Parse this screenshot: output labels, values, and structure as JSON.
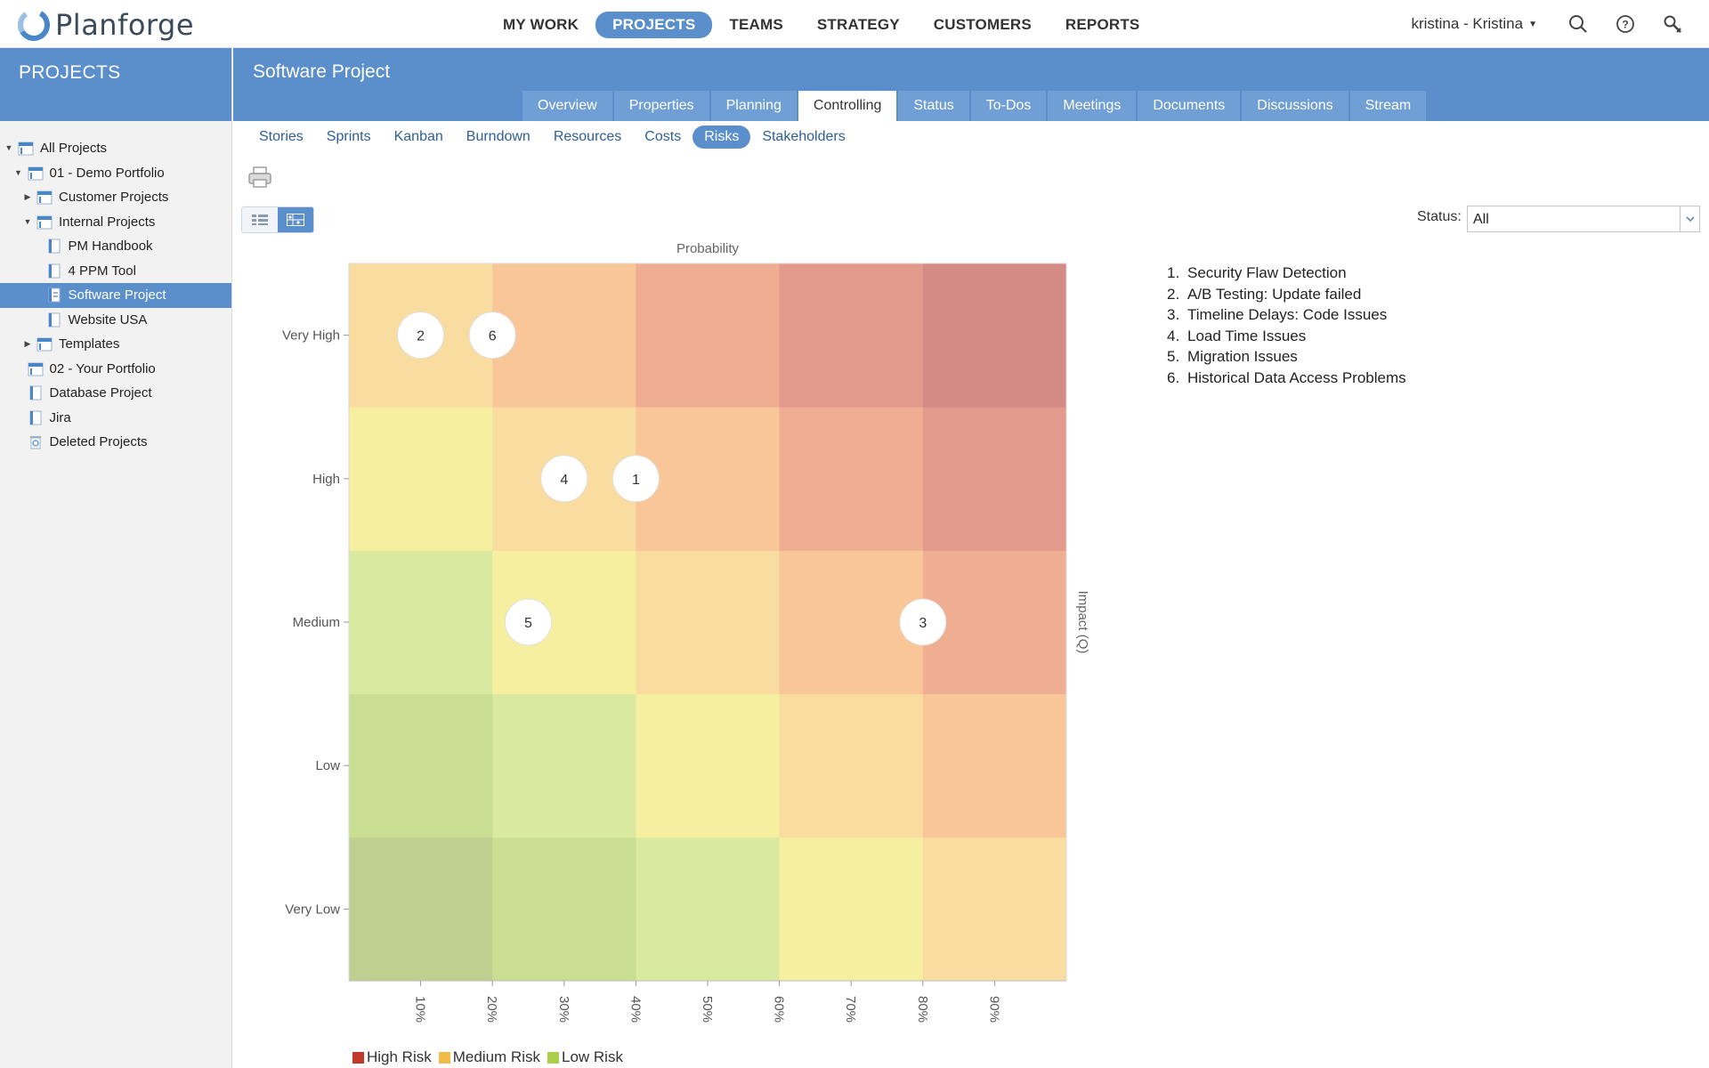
{
  "app": {
    "brand": "Planforge",
    "main_nav": [
      "MY WORK",
      "PROJECTS",
      "TEAMS",
      "STRATEGY",
      "CUSTOMERS",
      "REPORTS"
    ],
    "main_nav_active": "PROJECTS",
    "user": "kristina - Kristina"
  },
  "sidebar": {
    "title": "PROJECTS",
    "tree": [
      {
        "label": "All Projects",
        "level": 0,
        "expander": "open",
        "icon": "portfolio-icon"
      },
      {
        "label": "01 - Demo Portfolio",
        "level": 1,
        "expander": "open",
        "icon": "portfolio-icon"
      },
      {
        "label": "Customer Projects",
        "level": 2,
        "expander": "closed",
        "icon": "portfolio-icon"
      },
      {
        "label": "Internal Projects",
        "level": 2,
        "expander": "open",
        "icon": "portfolio-icon"
      },
      {
        "label": "PM Handbook",
        "level": 3,
        "expander": "none",
        "icon": "project-icon"
      },
      {
        "label": "4 PPM Tool",
        "level": 3,
        "expander": "none",
        "icon": "project-icon"
      },
      {
        "label": "Software Project",
        "level": 3,
        "expander": "none",
        "icon": "agile-project-icon",
        "selected": true
      },
      {
        "label": "Website USA",
        "level": 3,
        "expander": "none",
        "icon": "project-icon"
      },
      {
        "label": "Templates",
        "level": 2,
        "expander": "closed",
        "icon": "portfolio-icon"
      },
      {
        "label": "02 - Your Portfolio",
        "level": 1,
        "expander": "none",
        "icon": "portfolio-icon"
      },
      {
        "label": "Database Project",
        "level": 1,
        "expander": "none",
        "icon": "project-icon"
      },
      {
        "label": "Jira",
        "level": 1,
        "expander": "none",
        "icon": "project-icon"
      },
      {
        "label": "Deleted Projects",
        "level": 1,
        "expander": "none",
        "icon": "trash-icon"
      }
    ]
  },
  "project": {
    "title": "Software Project",
    "tabs": [
      "Overview",
      "Properties",
      "Planning",
      "Controlling",
      "Status",
      "To-Dos",
      "Meetings",
      "Documents",
      "Discussions",
      "Stream"
    ],
    "active_tab": "Controlling",
    "subnav": [
      "Stories",
      "Sprints",
      "Kanban",
      "Burndown",
      "Resources",
      "Costs",
      "Risks",
      "Stakeholders"
    ],
    "active_subnav": "Risks"
  },
  "filter": {
    "status_label": "Status:",
    "status_value": "All"
  },
  "risks": [
    {
      "number": "1.",
      "name": "Security Flaw Detection"
    },
    {
      "number": "2.",
      "name": "A/B Testing: Update failed"
    },
    {
      "number": "3.",
      "name": "Timeline Delays: Code Issues"
    },
    {
      "number": "4.",
      "name": "Load Time Issues"
    },
    {
      "number": "5.",
      "name": "Migration Issues"
    },
    {
      "number": "6.",
      "name": "Historical Data Access Problems"
    }
  ],
  "chart_data": {
    "type": "heatmap",
    "title": "Probability",
    "xlabel": "Probability",
    "ylabel": "Impact (Q)",
    "x_ticks": [
      "10%",
      "20%",
      "30%",
      "40%",
      "50%",
      "60%",
      "70%",
      "80%",
      "90%"
    ],
    "xlim": [
      0,
      100
    ],
    "y_categories": [
      "Very Low",
      "Low",
      "Medium",
      "High",
      "Very High"
    ],
    "cell_colors": [
      [
        "#bfcf8f",
        "#c9dd93",
        "#dae9a0",
        "#f5ef9f",
        "#f9dda0"
      ],
      [
        "#c9dd93",
        "#dae9a0",
        "#f5ef9f",
        "#f9dda0",
        "#f8c697"
      ],
      [
        "#dae9a0",
        "#f5ef9f",
        "#f9dda0",
        "#f8c697",
        "#efae91"
      ],
      [
        "#f5ef9f",
        "#f9dda0",
        "#f8c697",
        "#efae91",
        "#e39a8d"
      ],
      [
        "#f9dda0",
        "#f8c697",
        "#efae91",
        "#e39a8d",
        "#d48b85"
      ]
    ],
    "points": [
      {
        "label": "1",
        "probability": 40,
        "impact": "High"
      },
      {
        "label": "2",
        "probability": 10,
        "impact": "Very High"
      },
      {
        "label": "3",
        "probability": 80,
        "impact": "Medium"
      },
      {
        "label": "4",
        "probability": 30,
        "impact": "High"
      },
      {
        "label": "5",
        "probability": 25,
        "impact": "Medium"
      },
      {
        "label": "6",
        "probability": 20,
        "impact": "Very High"
      }
    ],
    "legend": [
      {
        "label": "High Risk",
        "color": "#c0392b"
      },
      {
        "label": "Medium Risk",
        "color": "#f0bb47"
      },
      {
        "label": "Low Risk",
        "color": "#a9cf4b"
      }
    ],
    "legend_position": "bottom-left",
    "grid": false
  }
}
